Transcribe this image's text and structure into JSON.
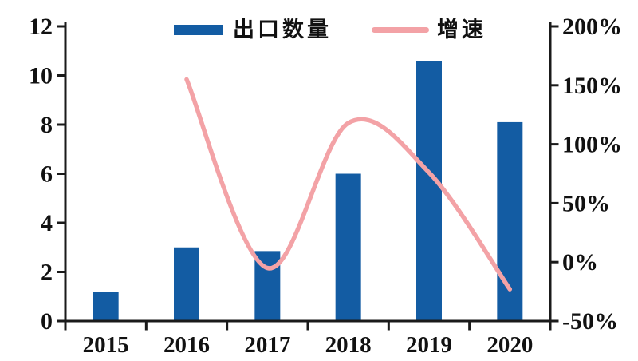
{
  "legend": {
    "bar_label": "出口数量",
    "line_label": "增速"
  },
  "colors": {
    "bar": "#135CA3",
    "line": "#F3A2A6",
    "axis": "#1a1a1a",
    "text": "#111111"
  },
  "chart_data": {
    "type": "bar+line combo",
    "categories": [
      "2015",
      "2016",
      "2017",
      "2018",
      "2019",
      "2020"
    ],
    "series": [
      {
        "name": "出口数量",
        "type": "bar",
        "axis": "left",
        "values": [
          1.2,
          3.0,
          2.85,
          6.0,
          10.6,
          8.1
        ]
      },
      {
        "name": "增速",
        "type": "line",
        "axis": "right",
        "unit": "%",
        "values": [
          null,
          155,
          -5,
          118,
          76,
          -23
        ]
      }
    ],
    "left_axis": {
      "min": 0,
      "max": 12,
      "step": 2,
      "ticks": [
        {
          "v": 0,
          "label": "0"
        },
        {
          "v": 2,
          "label": "2"
        },
        {
          "v": 4,
          "label": "4"
        },
        {
          "v": 6,
          "label": "6"
        },
        {
          "v": 8,
          "label": "8"
        },
        {
          "v": 10,
          "label": "10"
        },
        {
          "v": 12,
          "label": "12"
        }
      ]
    },
    "right_axis": {
      "min": -50,
      "max": 200,
      "step": 50,
      "ticks": [
        {
          "v": -50,
          "label": "-50%"
        },
        {
          "v": 0,
          "label": "0%"
        },
        {
          "v": 50,
          "label": "50%"
        },
        {
          "v": 100,
          "label": "100%"
        },
        {
          "v": 150,
          "label": "150%"
        },
        {
          "v": 200,
          "label": "200%"
        }
      ]
    },
    "grid": false,
    "legend_position": "top-center"
  }
}
